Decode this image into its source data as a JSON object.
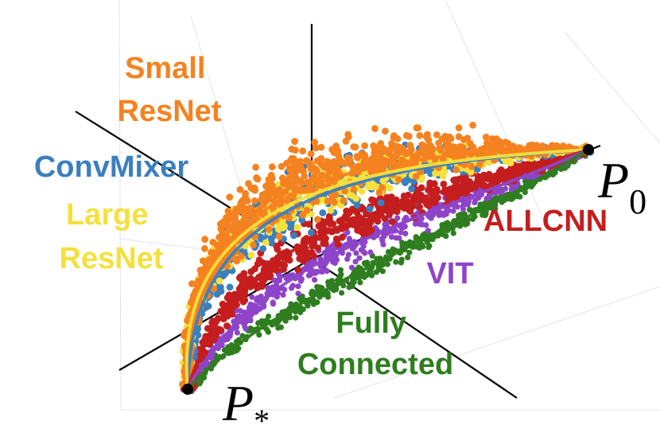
{
  "chart_data": {
    "type": "scatter",
    "title": "",
    "xlabel": "",
    "ylabel": "",
    "grid": true,
    "endpoints": {
      "start": "P",
      "start_sub": "*",
      "end": "P",
      "end_sub": "0"
    },
    "series": [
      {
        "name": "Small ResNet",
        "label_lines": [
          "Small",
          "ResNet"
        ],
        "color": "#f58220"
      },
      {
        "name": "ConvMixer",
        "label_lines": [
          "ConvMixer"
        ],
        "color": "#3a7fbf"
      },
      {
        "name": "Large ResNet",
        "label_lines": [
          "Large",
          "ResNet"
        ],
        "color": "#f5e03c"
      },
      {
        "name": "ALLCNN",
        "label_lines": [
          "ALLCNN"
        ],
        "color": "#c41e1e"
      },
      {
        "name": "VIT",
        "label_lines": [
          "VIT"
        ],
        "color": "#8e44c8"
      },
      {
        "name": "Fully Connected",
        "label_lines": [
          "Fully",
          "Connected"
        ],
        "color": "#2e7d1f"
      }
    ]
  }
}
